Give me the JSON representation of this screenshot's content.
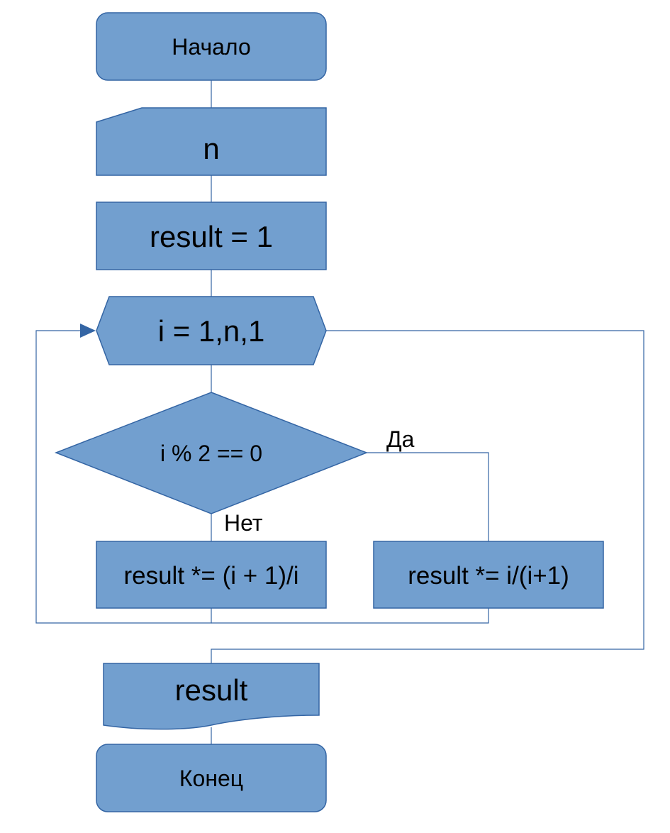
{
  "flowchart": {
    "start": "Начало",
    "input": "n",
    "init": "result = 1",
    "loop": "i = 1,n,1",
    "condition": "i % 2  == 0",
    "yes_label": "Да",
    "no_label": "Нет",
    "no_branch": "result *= (i + 1)/i",
    "yes_branch": "result *= i/(i+1)",
    "output": "result",
    "end": "Конец"
  },
  "colors": {
    "fill": "#729fcf",
    "stroke": "#3465a4"
  }
}
